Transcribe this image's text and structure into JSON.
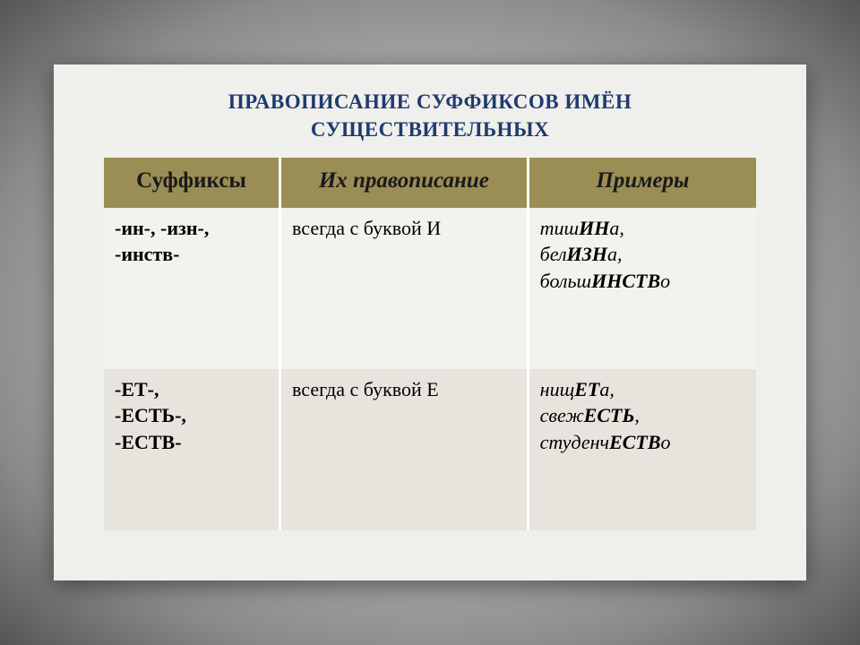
{
  "title_line1": "ПРАВОПИСАНИЕ СУФФИКСОВ ИМЁН",
  "title_line2": "СУЩЕСТВИТЕЛЬНЫХ",
  "title_color": "#1f3a6e",
  "header_bg": "#9a8e55",
  "header_fg": "#1a1a1a",
  "row_bg_light": "#f3f2ee",
  "row_bg_dark": "#e6e4dc",
  "columns": {
    "suffix": "Суффиксы",
    "rule": "Их правописание",
    "examples": "Примеры"
  },
  "rows": [
    {
      "suffix_lines": [
        "-ин-, -изн-,",
        "-инств-"
      ],
      "rule": "всегда с буквой И",
      "examples": [
        {
          "segments": [
            {
              "t": "тиш",
              "b": false
            },
            {
              "t": "ИН",
              "b": true
            },
            {
              "t": "а,",
              "b": false
            }
          ]
        },
        {
          "segments": [
            {
              "t": "бел",
              "b": false
            },
            {
              "t": "ИЗН",
              "b": true
            },
            {
              "t": "а,",
              "b": false
            }
          ]
        },
        {
          "segments": [
            {
              "t": "больш",
              "b": false
            },
            {
              "t": "ИНСТВ",
              "b": true
            },
            {
              "t": "о",
              "b": false
            }
          ]
        }
      ]
    },
    {
      "suffix_lines": [
        "-ЕТ-,",
        "-ЕСТЬ-,",
        "-ЕСТВ-"
      ],
      "rule": "всегда с буквой Е",
      "examples": [
        {
          "segments": [
            {
              "t": "нищ",
              "b": false
            },
            {
              "t": "ЕТ",
              "b": true
            },
            {
              "t": "а,",
              "b": false
            }
          ]
        },
        {
          "segments": [
            {
              "t": "свеж",
              "b": false
            },
            {
              "t": "ЕСТЬ",
              "b": true
            },
            {
              "t": ",",
              "b": false
            }
          ]
        },
        {
          "segments": [
            {
              "t": "студенч",
              "b": false
            },
            {
              "t": "ЕСТВ",
              "b": true
            },
            {
              "t": "о",
              "b": false
            }
          ]
        }
      ]
    }
  ]
}
